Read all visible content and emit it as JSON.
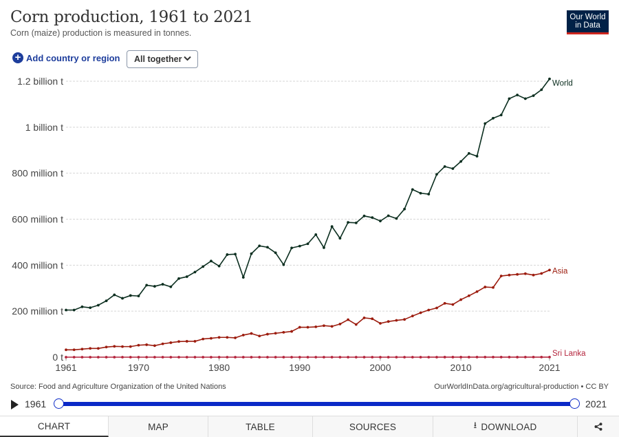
{
  "header": {
    "title": "Corn production, 1961 to 2021",
    "subtitle": "Corn (maize) production is measured in tonnes.",
    "logo_line1": "Our World",
    "logo_line2": "in Data"
  },
  "controls": {
    "add_label": "Add country or region",
    "select_value": "All together"
  },
  "footer": {
    "source": "Source: Food and Agriculture Organization of the United Nations",
    "credit": "OurWorldInData.org/agricultural-production • CC BY"
  },
  "timeline": {
    "start": "1961",
    "end": "2021"
  },
  "tabs": [
    "CHART",
    "MAP",
    "TABLE",
    "SOURCES",
    "DOWNLOAD"
  ],
  "colors": {
    "world": "#0b2e1f",
    "asia": "#9c1c0e",
    "sri_lanka": "#b4253d",
    "accent": "#0a29c7",
    "logo_bg": "#002147"
  },
  "chart_data": {
    "type": "line",
    "title": "Corn production, 1961 to 2021",
    "ylim": [
      0,
      1200000000
    ],
    "yticks": [
      0,
      200000000,
      400000000,
      600000000,
      800000000,
      1000000000,
      1200000000
    ],
    "ytick_labels": [
      "0 t",
      "200 million t",
      "400 million t",
      "600 million t",
      "800 million t",
      "1 billion t",
      "1.2 billion t"
    ],
    "xticks": [
      1961,
      1970,
      1980,
      1990,
      2000,
      2010,
      2021
    ],
    "grid": "horizontal dashed",
    "x": [
      1961,
      1962,
      1963,
      1964,
      1965,
      1966,
      1967,
      1968,
      1969,
      1970,
      1971,
      1972,
      1973,
      1974,
      1975,
      1976,
      1977,
      1978,
      1979,
      1980,
      1981,
      1982,
      1983,
      1984,
      1985,
      1986,
      1987,
      1988,
      1989,
      1990,
      1991,
      1992,
      1993,
      1994,
      1995,
      1996,
      1997,
      1998,
      1999,
      2000,
      2001,
      2002,
      2003,
      2004,
      2005,
      2006,
      2007,
      2008,
      2009,
      2010,
      2011,
      2012,
      2013,
      2014,
      2015,
      2016,
      2017,
      2018,
      2019,
      2020,
      2021
    ],
    "series": [
      {
        "name": "World",
        "values": [
          205,
          205,
          219,
          215,
          226,
          245,
          271,
          256,
          268,
          266,
          313,
          308,
          317,
          306,
          342,
          350,
          370,
          394,
          418,
          396,
          446,
          448,
          347,
          450,
          484,
          478,
          454,
          402,
          475,
          483,
          493,
          533,
          476,
          568,
          517,
          586,
          584,
          614,
          607,
          592,
          615,
          603,
          644,
          729,
          713,
          709,
          795,
          829,
          820,
          851,
          886,
          874,
          1016,
          1039,
          1053,
          1124,
          1140,
          1124,
          1137,
          1163,
          1210
        ]
      },
      {
        "name": "Asia",
        "values": [
          32,
          32,
          35,
          38,
          38,
          44,
          47,
          46,
          46,
          52,
          54,
          50,
          58,
          63,
          68,
          69,
          69,
          79,
          82,
          86,
          86,
          84,
          96,
          103,
          92,
          100,
          104,
          108,
          112,
          130,
          130,
          132,
          137,
          134,
          144,
          163,
          142,
          171,
          167,
          147,
          155,
          160,
          164,
          179,
          193,
          205,
          214,
          234,
          229,
          250,
          267,
          285,
          305,
          303,
          353,
          357,
          360,
          363,
          357,
          364,
          379
        ]
      },
      {
        "name": "Sri Lanka",
        "values": [
          0.02,
          0.02,
          0.02,
          0.02,
          0.02,
          0.02,
          0.02,
          0.02,
          0.02,
          0.02,
          0.02,
          0.03,
          0.03,
          0.03,
          0.03,
          0.03,
          0.03,
          0.03,
          0.03,
          0.03,
          0.03,
          0.03,
          0.03,
          0.03,
          0.03,
          0.03,
          0.03,
          0.03,
          0.03,
          0.03,
          0.03,
          0.03,
          0.03,
          0.03,
          0.03,
          0.03,
          0.03,
          0.03,
          0.03,
          0.03,
          0.03,
          0.03,
          0.03,
          0.03,
          0.03,
          0.04,
          0.05,
          0.12,
          0.17,
          0.16,
          0.16,
          0.2,
          0.24,
          0.2,
          0.26,
          0.25,
          0.17,
          0.27,
          0.32,
          0.3,
          0.32
        ]
      }
    ],
    "series_value_unit": "million t"
  }
}
